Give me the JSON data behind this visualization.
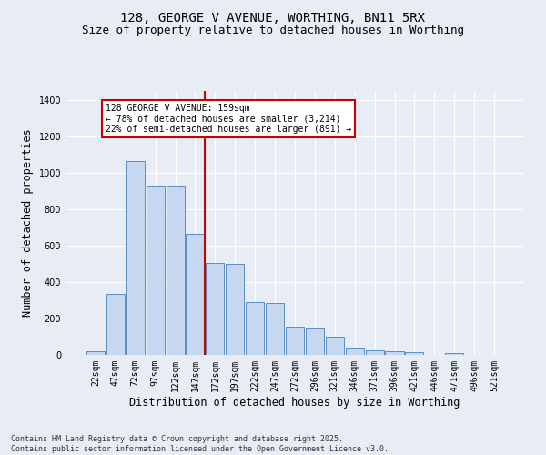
{
  "title": "128, GEORGE V AVENUE, WORTHING, BN11 5RX",
  "subtitle": "Size of property relative to detached houses in Worthing",
  "xlabel": "Distribution of detached houses by size in Worthing",
  "ylabel": "Number of detached properties",
  "categories": [
    "22sqm",
    "47sqm",
    "72sqm",
    "97sqm",
    "122sqm",
    "147sqm",
    "172sqm",
    "197sqm",
    "222sqm",
    "247sqm",
    "272sqm",
    "296sqm",
    "321sqm",
    "346sqm",
    "371sqm",
    "396sqm",
    "421sqm",
    "446sqm",
    "471sqm",
    "496sqm",
    "521sqm"
  ],
  "values": [
    20,
    335,
    1065,
    930,
    930,
    665,
    505,
    500,
    290,
    285,
    155,
    150,
    100,
    40,
    25,
    20,
    15,
    0,
    10,
    0,
    0
  ],
  "bar_color": "#c5d8ef",
  "bar_edge_color": "#5a8fc0",
  "background_color": "#e8edf5",
  "grid_color": "#ffffff",
  "vline_pos": 5.5,
  "vline_color": "#cc0000",
  "annotation_text": "128 GEORGE V AVENUE: 159sqm\n← 78% of detached houses are smaller (3,214)\n22% of semi-detached houses are larger (891) →",
  "annotation_box_color": "#cc0000",
  "ylim": [
    0,
    1450
  ],
  "yticks": [
    0,
    200,
    400,
    600,
    800,
    1000,
    1200,
    1400
  ],
  "footer": "Contains HM Land Registry data © Crown copyright and database right 2025.\nContains public sector information licensed under the Open Government Licence v3.0.",
  "title_fontsize": 10,
  "subtitle_fontsize": 9,
  "tick_fontsize": 7,
  "label_fontsize": 8.5
}
